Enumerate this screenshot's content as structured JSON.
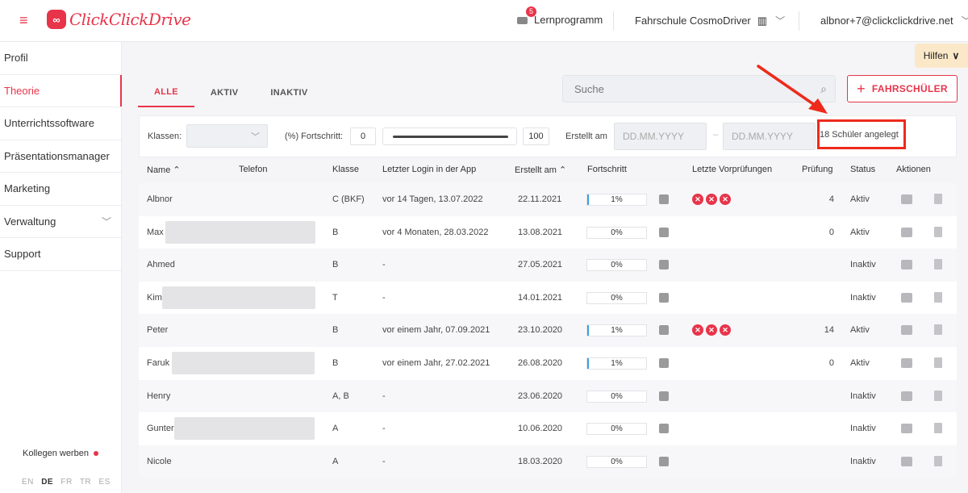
{
  "header": {
    "menu_icon": "hamburger-icon",
    "logo_text": "ClickClickDrive",
    "notifications_count": "5",
    "lernprogramm_label": "Lernprogramm",
    "school_name": "Fahrschule CosmoDriver",
    "user_email": "albnor+7@clickclickdrive.net"
  },
  "sidebar": {
    "items": [
      {
        "label": "Profil"
      },
      {
        "label": "Theorie"
      },
      {
        "label": "Unterrichtssoftware"
      },
      {
        "label": "Präsentationsmanager"
      },
      {
        "label": "Marketing"
      },
      {
        "label": "Verwaltung"
      },
      {
        "label": "Support"
      }
    ],
    "kollegen_label": "Kollegen werben",
    "languages": [
      "EN",
      "DE",
      "FR",
      "TR",
      "ES"
    ],
    "active_language": "DE"
  },
  "hilfen_label": "Hilfen",
  "tabs": [
    {
      "label": "ALLE"
    },
    {
      "label": "AKTIV"
    },
    {
      "label": "INAKTIV"
    }
  ],
  "search": {
    "placeholder": "Suche"
  },
  "add_button_label": "FAHRSCHÜLER",
  "filters": {
    "klassen_label": "Klassen:",
    "fortschritt_label": "(%) Fortschritt:",
    "fortschritt_min": "0",
    "fortschritt_max": "100",
    "erstellt_label": "Erstellt am",
    "date_from_placeholder": "DD.MM.YYYY",
    "date_separator": "–",
    "date_to_placeholder": "DD.MM.YYYY",
    "count_text": "18 Schüler angelegt"
  },
  "table": {
    "columns": [
      "Name ⌃",
      "Telefon",
      "Klasse",
      "Letzter Login in der App",
      "Erstellt am ⌃",
      "Fortschritt",
      "Letzte Vorprüfungen",
      "Prüfung",
      "Status",
      "Aktionen"
    ],
    "rows": [
      {
        "name": "Albnor",
        "klasse": "C (BKF)",
        "login": "vor 14 Tagen, 13.07.2022",
        "erstellt": "22.11.2021",
        "fortschritt": "1%",
        "vorpruefungen": 3,
        "pruefung": "4",
        "status": "Aktiv"
      },
      {
        "name": "Max",
        "klasse": "B",
        "login": "vor 4 Monaten, 28.03.2022",
        "erstellt": "13.08.2021",
        "fortschritt": "0%",
        "vorpruefungen": 0,
        "pruefung": "0",
        "status": "Aktiv"
      },
      {
        "name": "Ahmed",
        "klasse": "B",
        "login": "-",
        "erstellt": "27.05.2021",
        "fortschritt": "0%",
        "vorpruefungen": 0,
        "pruefung": "",
        "status": "Inaktiv"
      },
      {
        "name": "Kim",
        "klasse": "T",
        "login": "-",
        "erstellt": "14.01.2021",
        "fortschritt": "0%",
        "vorpruefungen": 0,
        "pruefung": "",
        "status": "Inaktiv"
      },
      {
        "name": "Peter",
        "klasse": "B",
        "login": "vor einem Jahr, 07.09.2021",
        "erstellt": "23.10.2020",
        "fortschritt": "1%",
        "vorpruefungen": 3,
        "pruefung": "14",
        "status": "Aktiv"
      },
      {
        "name": "Faruk",
        "klasse": "B",
        "login": "vor einem Jahr, 27.02.2021",
        "erstellt": "26.08.2020",
        "fortschritt": "1%",
        "vorpruefungen": 0,
        "pruefung": "0",
        "status": "Aktiv"
      },
      {
        "name": "Henry",
        "klasse": "A, B",
        "login": "-",
        "erstellt": "23.06.2020",
        "fortschritt": "0%",
        "vorpruefungen": 0,
        "pruefung": "",
        "status": "Inaktiv"
      },
      {
        "name": "Gunter",
        "klasse": "A",
        "login": "-",
        "erstellt": "10.06.2020",
        "fortschritt": "0%",
        "vorpruefungen": 0,
        "pruefung": "",
        "status": "Inaktiv"
      },
      {
        "name": "Nicole",
        "klasse": "A",
        "login": "-",
        "erstellt": "18.03.2020",
        "fortschritt": "0%",
        "vorpruefungen": 0,
        "pruefung": "",
        "status": "Inaktiv"
      }
    ]
  }
}
